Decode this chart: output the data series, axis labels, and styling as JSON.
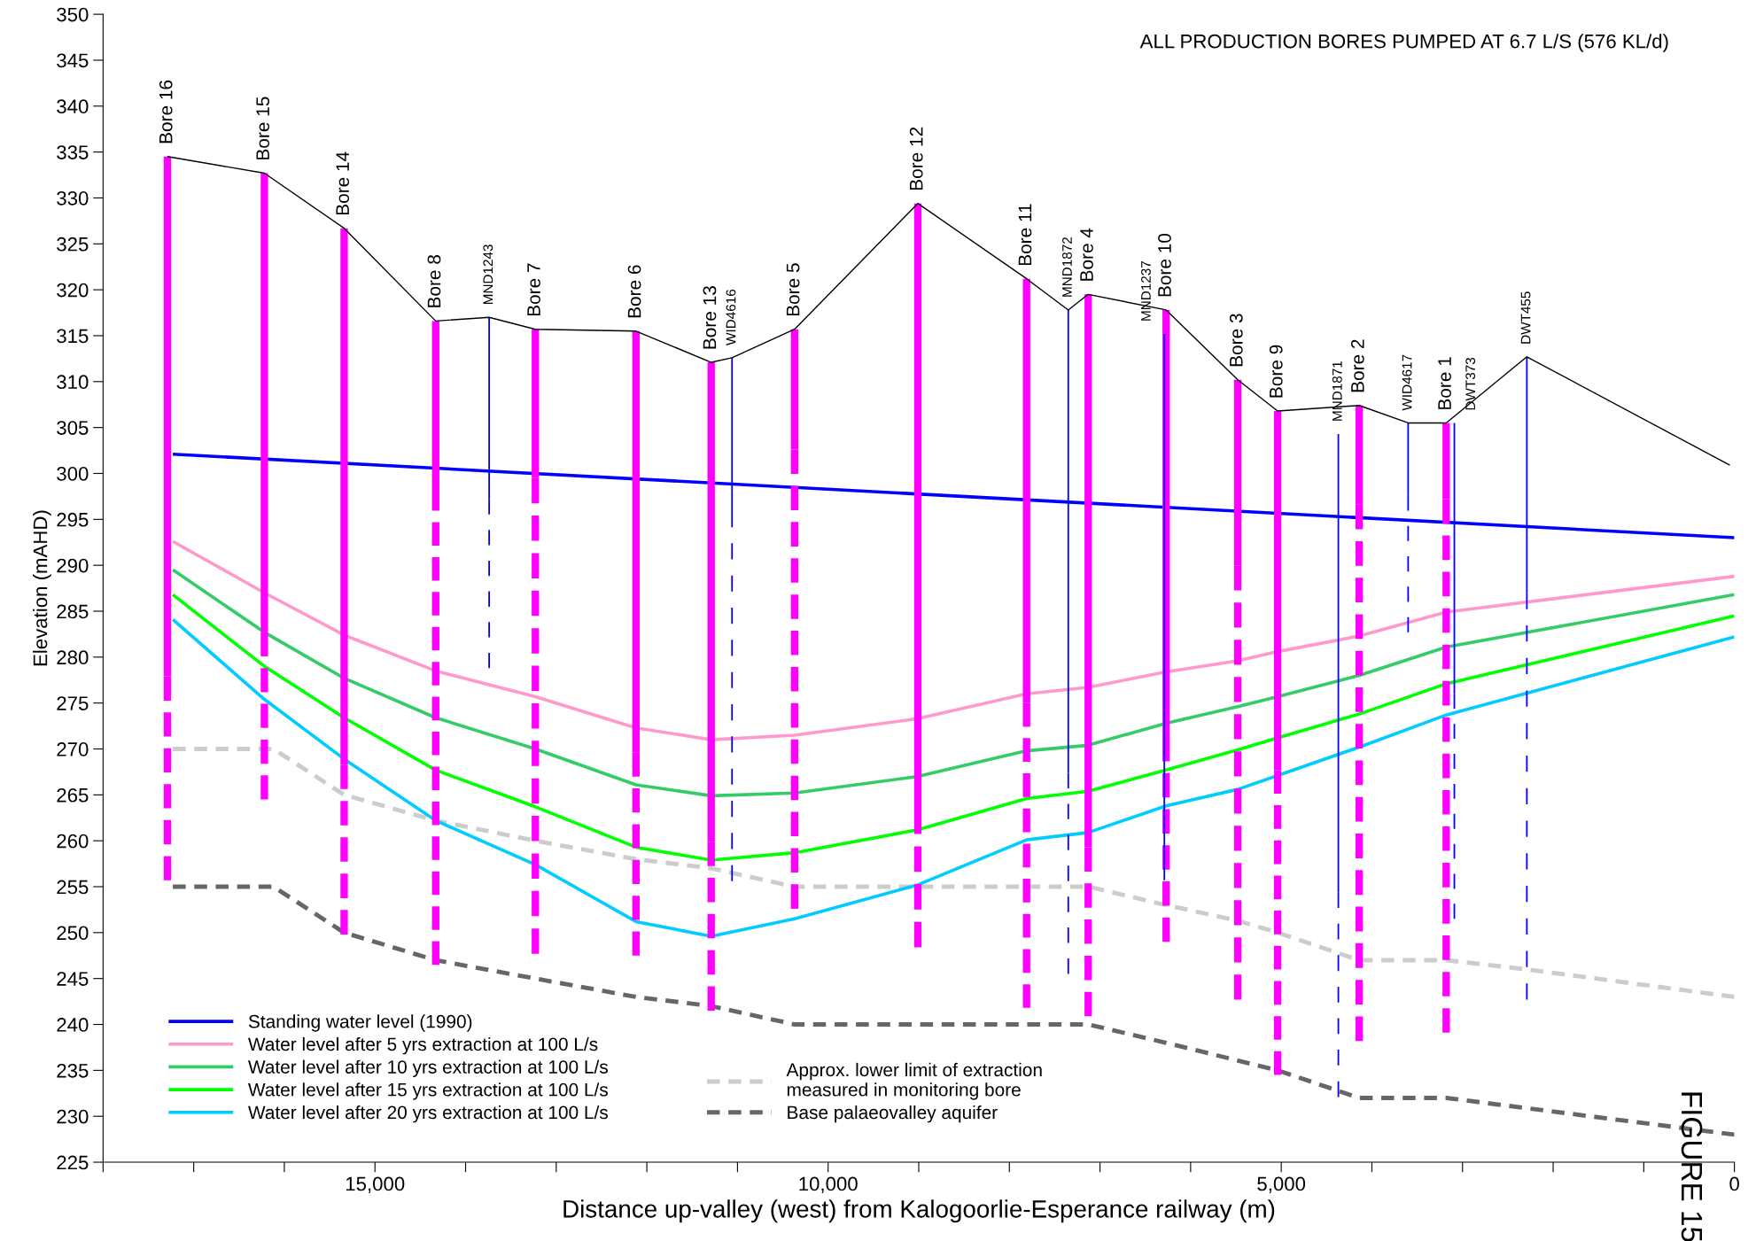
{
  "chart_data": {
    "type": "line",
    "xlabel": "Distance up-valley (west) from Kalogoorlie-Esperance railway (m)",
    "ylabel": "Elevation (mAHD)",
    "annotations": [
      "ALL PRODUCTION BORES PUMPED AT 6.7 L/S (576 KL/d)",
      "FIGURE 15"
    ],
    "xlim": [
      18000,
      0
    ],
    "xticks": [
      {
        "value": 18000,
        "label": null
      },
      {
        "value": 17000,
        "label": null
      },
      {
        "value": 16000,
        "label": null
      },
      {
        "value": 15000,
        "label": "15,000"
      },
      {
        "value": 14000,
        "label": null
      },
      {
        "value": 13000,
        "label": null
      },
      {
        "value": 12000,
        "label": null
      },
      {
        "value": 11000,
        "label": null
      },
      {
        "value": 10000,
        "label": "10,000"
      },
      {
        "value": 9000,
        "label": null
      },
      {
        "value": 8000,
        "label": null
      },
      {
        "value": 7000,
        "label": null
      },
      {
        "value": 6000,
        "label": null
      },
      {
        "value": 5000,
        "label": "5,000"
      },
      {
        "value": 4000,
        "label": null
      },
      {
        "value": 3000,
        "label": null
      },
      {
        "value": 2000,
        "label": null
      },
      {
        "value": 1000,
        "label": null
      },
      0
    ],
    "ylim": [
      225,
      350
    ],
    "yticks": [
      225,
      230,
      235,
      240,
      245,
      250,
      255,
      260,
      265,
      270,
      275,
      280,
      285,
      290,
      295,
      300,
      305,
      310,
      315,
      320,
      325,
      330,
      335,
      340,
      345,
      350
    ],
    "grid": false,
    "legend": "bottom left",
    "marker": "none",
    "series": [
      {
        "color": "#000000",
        "line_style": "solid",
        "x": [
          17290,
          16220,
          15340,
          14330,
          13740,
          13230,
          12120,
          11290,
          11060,
          10370,
          9010,
          7810,
          7350,
          7130,
          6270,
          5480,
          5040,
          4140,
          3600,
          3180,
          2290,
          50
        ],
        "values": [
          334.5,
          332.7,
          326.7,
          316.6,
          317.0,
          315.7,
          315.5,
          312.1,
          312.6,
          315.7,
          329.4,
          321.2,
          317.8,
          319.5,
          317.8,
          310.2,
          306.8,
          307.4,
          305.5,
          305.5,
          312.7,
          300.9
        ]
      },
      {
        "name": "Standing water level (1990)",
        "color": "#0000ff",
        "line_style": "solid",
        "x": [
          17230,
          0
        ],
        "values": [
          302.1,
          293.0
        ]
      },
      {
        "name": "Water level after 5 yrs extraction at 100 L/s",
        "color": "#ff99cc",
        "line_style": "solid",
        "x": [
          17230,
          16220,
          15340,
          14330,
          13230,
          12120,
          11290,
          10370,
          9010,
          7810,
          7130,
          6270,
          5480,
          5040,
          4140,
          3180,
          0
        ],
        "values": [
          292.6,
          287.0,
          282.4,
          278.5,
          275.7,
          272.3,
          271.0,
          271.5,
          273.3,
          276.0,
          276.7,
          278.4,
          279.6,
          280.6,
          282.3,
          284.9,
          288.8
        ]
      },
      {
        "name": "Water level after 10 yrs extraction at 100 L/s",
        "color": "#33cc66",
        "line_style": "solid",
        "x": [
          17230,
          16220,
          15340,
          14330,
          13230,
          12120,
          11290,
          10370,
          9010,
          7810,
          7130,
          6270,
          5480,
          5040,
          4140,
          3180,
          0
        ],
        "values": [
          289.5,
          282.7,
          277.7,
          273.4,
          270.0,
          266.1,
          264.9,
          265.2,
          267.0,
          269.8,
          270.4,
          272.8,
          274.6,
          275.7,
          278.0,
          281.1,
          286.8
        ]
      },
      {
        "name": "Water level after 15 yrs extraction at 100 L/s",
        "color": "#00ff00",
        "line_style": "solid",
        "x": [
          17230,
          16220,
          15340,
          14330,
          13230,
          12120,
          11290,
          10370,
          9010,
          7810,
          7130,
          6270,
          5480,
          5040,
          4140,
          3180,
          0
        ],
        "values": [
          286.8,
          279.0,
          273.4,
          267.7,
          263.7,
          259.3,
          257.9,
          258.7,
          261.2,
          264.6,
          265.4,
          267.7,
          269.9,
          271.2,
          273.8,
          277.1,
          284.5
        ]
      },
      {
        "name": "Water level after 20 yrs extraction at 100 L/s",
        "color": "#00ccff",
        "line_style": "solid",
        "x": [
          17230,
          16220,
          15340,
          14330,
          13230,
          12120,
          11290,
          10370,
          9010,
          7810,
          7130,
          6270,
          5480,
          5040,
          4140,
          3180,
          0
        ],
        "values": [
          284.1,
          275.4,
          268.9,
          262.2,
          257.4,
          251.2,
          249.6,
          251.5,
          255.2,
          260.1,
          260.9,
          263.8,
          265.6,
          267.1,
          270.2,
          273.7,
          282.2
        ]
      },
      {
        "name": "Approx. lower limit of extraction\nmeasured in monitoring bore",
        "color": "#cccccc",
        "line_style": "dashed",
        "x": [
          17230,
          16120,
          15340,
          14330,
          13230,
          12120,
          11290,
          10370,
          7130,
          6270,
          5480,
          5040,
          4140,
          3180,
          2290,
          0
        ],
        "values": [
          270,
          270,
          265,
          262.2,
          260,
          258,
          257,
          255,
          255,
          253,
          251.3,
          250,
          247,
          247,
          246,
          243
        ]
      },
      {
        "name": "Base palaeovalley aquifer",
        "color": "#666666",
        "line_style": "dashed",
        "x": [
          17230,
          16120,
          15340,
          14330,
          13230,
          12120,
          11290,
          10370,
          7130,
          6270,
          5040,
          4140,
          3180,
          0
        ],
        "values": [
          255,
          255,
          250,
          247,
          245,
          243,
          242,
          240,
          240,
          238,
          235,
          232,
          232,
          228
        ]
      },
      {
        "name": "Bore 16",
        "color": "#ff00ff",
        "line_style": "solid",
        "x": [
          17290,
          17290
        ],
        "values": [
          334.5,
          277.9
        ]
      },
      {
        "color": "#ff00ff",
        "line_style": "dashed",
        "x": [
          17290,
          17290
        ],
        "values": [
          277.9,
          255.7
        ]
      },
      {
        "name": "Bore 15",
        "color": "#ff00ff",
        "line_style": "solid",
        "x": [
          16220,
          16220
        ],
        "values": [
          332.7,
          282.7
        ]
      },
      {
        "color": "#ff00ff",
        "line_style": "dashed",
        "x": [
          16220,
          16220
        ],
        "values": [
          282.7,
          264.5
        ]
      },
      {
        "name": "Bore 14",
        "color": "#ff00ff",
        "line_style": "solid",
        "x": [
          15340,
          15340
        ],
        "values": [
          326.7,
          268.3
        ]
      },
      {
        "color": "#ff00ff",
        "line_style": "dashed",
        "x": [
          15340,
          15340
        ],
        "values": [
          268.3,
          249.8
        ]
      },
      {
        "name": "Bore 8",
        "color": "#ff00ff",
        "line_style": "solid",
        "x": [
          14330,
          14330
        ],
        "values": [
          316.6,
          298.5
        ]
      },
      {
        "color": "#ff00ff",
        "line_style": "dashed",
        "x": [
          14330,
          14330
        ],
        "values": [
          298.5,
          246.5
        ]
      },
      {
        "name": "MND1243",
        "color": "#0000ff",
        "line_style": "solid",
        "x": [
          13740,
          13740
        ],
        "values": [
          317.0,
          297.2
        ]
      },
      {
        "color": "#0000ff",
        "line_style": "dashed",
        "x": [
          13740,
          13740
        ],
        "values": [
          297.2,
          278.8
        ]
      },
      {
        "name": "Bore 7",
        "color": "#ff00ff",
        "line_style": "solid",
        "x": [
          13230,
          13230
        ],
        "values": [
          315.7,
          299.5
        ]
      },
      {
        "color": "#ff00ff",
        "line_style": "dashed",
        "x": [
          13230,
          13230
        ],
        "values": [
          299.5,
          247.7
        ]
      },
      {
        "name": "Bore 6",
        "color": "#ff00ff",
        "line_style": "solid",
        "x": [
          12120,
          12120
        ],
        "values": [
          315.5,
          269.6
        ]
      },
      {
        "color": "#ff00ff",
        "line_style": "dashed",
        "x": [
          12120,
          12120
        ],
        "values": [
          269.6,
          247.5
        ]
      },
      {
        "name": "Bore 13",
        "color": "#ff00ff",
        "line_style": "solid",
        "x": [
          11290,
          11290
        ],
        "values": [
          312.1,
          259.9
        ]
      },
      {
        "color": "#ff00ff",
        "line_style": "dashed",
        "x": [
          11290,
          11290
        ],
        "values": [
          259.9,
          241.5
        ]
      },
      {
        "name": "WID4616",
        "color": "#0000ff",
        "line_style": "solid",
        "x": [
          11060,
          11060
        ],
        "values": [
          312.6,
          295.9
        ]
      },
      {
        "color": "#0000ff",
        "line_style": "dashed",
        "x": [
          11060,
          11060
        ],
        "values": [
          295.9,
          255.6
        ]
      },
      {
        "name": "Bore 5",
        "color": "#ff00ff",
        "line_style": "solid",
        "x": [
          10370,
          10370
        ],
        "values": [
          315.7,
          302.6
        ]
      },
      {
        "color": "#ff00ff",
        "line_style": "dashed",
        "x": [
          10370,
          10370
        ],
        "values": [
          302.6,
          252.6
        ]
      },
      {
        "name": "Bore 12",
        "color": "#ff00ff",
        "line_style": "solid",
        "x": [
          9010,
          9010
        ],
        "values": [
          329.4,
          263.5
        ]
      },
      {
        "color": "#ff00ff",
        "line_style": "dashed",
        "x": [
          9010,
          9010
        ],
        "values": [
          263.5,
          248.4
        ]
      },
      {
        "name": "Bore 11",
        "color": "#ff00ff",
        "line_style": "solid",
        "x": [
          7810,
          7810
        ],
        "values": [
          321.2,
          275.0
        ]
      },
      {
        "color": "#ff00ff",
        "line_style": "dashed",
        "x": [
          7810,
          7810
        ],
        "values": [
          275.0,
          241.8
        ]
      },
      {
        "name": "MND1872",
        "color": "#0000ff",
        "line_style": "solid",
        "x": [
          7350,
          7350
        ],
        "values": [
          317.8,
          267.4
        ]
      },
      {
        "color": "#0000ff",
        "line_style": "dashed",
        "x": [
          7350,
          7350
        ],
        "values": [
          267.4,
          245.5
        ]
      },
      {
        "name": "Bore 4",
        "color": "#ff00ff",
        "line_style": "solid",
        "x": [
          7130,
          7130
        ],
        "values": [
          319.5,
          259.3
        ]
      },
      {
        "color": "#ff00ff",
        "line_style": "dashed",
        "x": [
          7130,
          7130
        ],
        "values": [
          259.3,
          240.9
        ]
      },
      {
        "name": "MND1237",
        "color": "#0000ff",
        "line_style": "solid",
        "x": [
          6290,
          6290
        ],
        "values": [
          315.2,
          255.7
        ]
      },
      {
        "name": "Bore 10",
        "color": "#ff00ff",
        "line_style": "solid",
        "x": [
          6270,
          6270
        ],
        "values": [
          317.8,
          271.3
        ]
      },
      {
        "color": "#ff00ff",
        "line_style": "dashed",
        "x": [
          6270,
          6270
        ],
        "values": [
          271.3,
          249.0
        ]
      },
      {
        "name": "Bore 3",
        "color": "#ff00ff",
        "line_style": "solid",
        "x": [
          5480,
          5480
        ],
        "values": [
          310.2,
          290.0
        ]
      },
      {
        "color": "#ff00ff",
        "line_style": "dashed",
        "x": [
          5480,
          5480
        ],
        "values": [
          290.0,
          242.7
        ]
      },
      {
        "name": "Bore 9",
        "color": "#ff00ff",
        "line_style": "solid",
        "x": [
          5040,
          5040
        ],
        "values": [
          306.8,
          267.7
        ]
      },
      {
        "color": "#ff00ff",
        "line_style": "dashed",
        "x": [
          5040,
          5040
        ],
        "values": [
          267.7,
          234.5
        ]
      },
      {
        "name": "MND1871",
        "color": "#0000ff",
        "line_style": "solid",
        "x": [
          4370,
          4370
        ],
        "values": [
          304.3,
          254.4
        ]
      },
      {
        "color": "#0000ff",
        "line_style": "dashed",
        "x": [
          4370,
          4370
        ],
        "values": [
          254.4,
          232.1
        ]
      },
      {
        "name": "Bore 2",
        "color": "#ff00ff",
        "line_style": "solid",
        "x": [
          4140,
          4140
        ],
        "values": [
          307.4,
          296.6
        ]
      },
      {
        "color": "#ff00ff",
        "line_style": "dashed",
        "x": [
          4140,
          4140
        ],
        "values": [
          296.6,
          238.2
        ]
      },
      {
        "name": "WID4617",
        "color": "#0000ff",
        "line_style": "solid",
        "x": [
          3600,
          3600
        ],
        "values": [
          305.5,
          297.6
        ]
      },
      {
        "color": "#0000ff",
        "line_style": "dashed",
        "x": [
          3600,
          3600
        ],
        "values": [
          297.6,
          282.7
        ]
      },
      {
        "name": "Bore 1",
        "color": "#ff00ff",
        "line_style": "solid",
        "x": [
          3180,
          3180
        ],
        "values": [
          305.5,
          297.2
        ]
      },
      {
        "color": "#ff00ff",
        "line_style": "dashed",
        "x": [
          3180,
          3180
        ],
        "values": [
          297.2,
          239.1
        ]
      },
      {
        "name": "DWT373",
        "color": "#0000ff",
        "line_style": "solid",
        "x": [
          3090,
          3090
        ],
        "values": [
          305.5,
          276.0
        ]
      },
      {
        "color": "#0000ff",
        "line_style": "dashed",
        "x": [
          3090,
          3090
        ],
        "values": [
          276.0,
          251.5
        ]
      },
      {
        "name": "DWT455",
        "color": "#0000ff",
        "line_style": "solid",
        "x": [
          2290,
          2290
        ],
        "values": [
          312.7,
          287.0
        ]
      },
      {
        "color": "#0000ff",
        "line_style": "dashed",
        "x": [
          2290,
          2290
        ],
        "values": [
          287.0,
          242.7
        ]
      }
    ]
  }
}
